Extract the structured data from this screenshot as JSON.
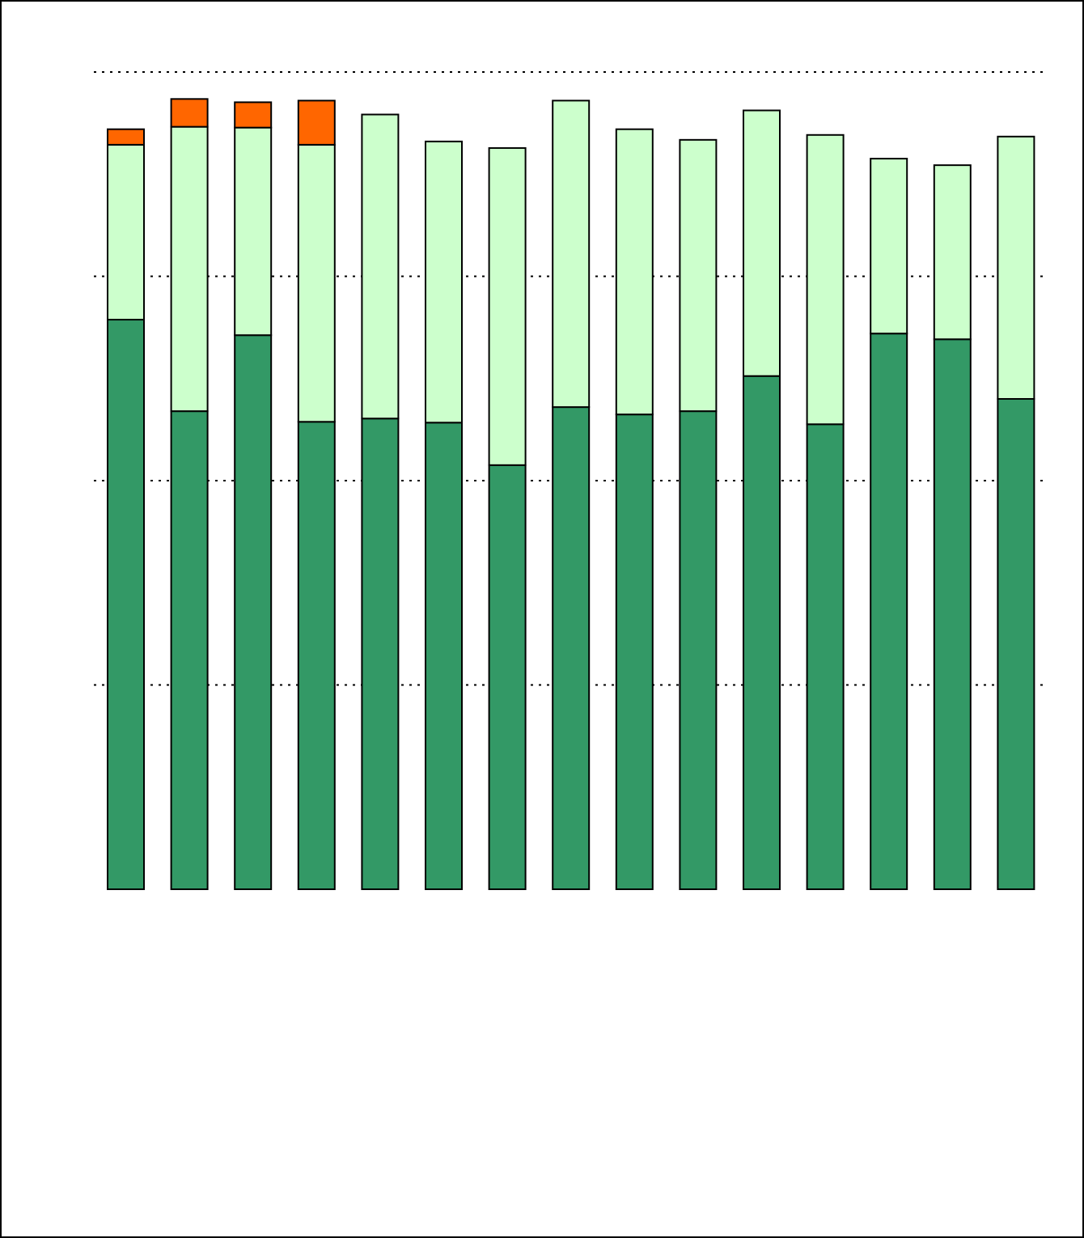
{
  "chart_data": {
    "type": "bar",
    "stacked": true,
    "title": "",
    "xlabel": "",
    "ylabel": "",
    "categories": [
      "",
      "",
      "",
      "",
      "",
      "",
      "",
      "",
      "",
      "",
      "",
      "",
      "",
      "",
      ""
    ],
    "ylim": [
      0,
      100
    ],
    "yticks": [
      25,
      50,
      75,
      100
    ],
    "grid": true,
    "legend": "none",
    "series": [
      {
        "color": "#339966",
        "values": [
          69.7,
          58.5,
          67.8,
          57.2,
          57.6,
          57.1,
          51.9,
          59.0,
          58.1,
          58.5,
          62.8,
          56.9,
          68.0,
          67.3,
          60.0
        ]
      },
      {
        "color": "#CCFFCC",
        "values": [
          21.4,
          34.8,
          25.4,
          33.9,
          37.2,
          34.4,
          38.8,
          37.5,
          34.9,
          33.2,
          32.5,
          35.4,
          21.4,
          21.3,
          32.1
        ]
      },
      {
        "color": "#FF6600",
        "values": [
          1.9,
          3.4,
          3.1,
          5.4,
          0,
          0,
          0,
          0,
          0,
          0,
          0,
          0,
          0,
          0,
          0
        ]
      }
    ]
  }
}
